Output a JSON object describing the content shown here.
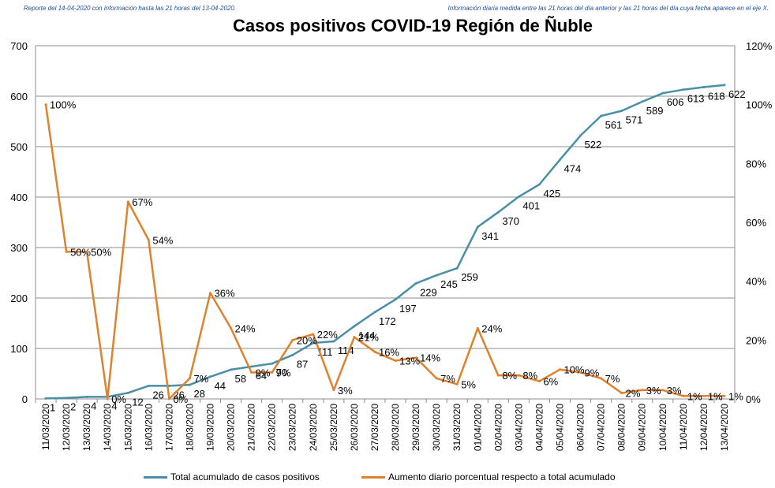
{
  "notes": {
    "left": "Reporte del 14-04-2020  con información hasta las 21 horas del 13-04-2020.",
    "right": "Información diaria medida entre las 21 horas del día anterior y las 21 horas del día cuya fecha aparece en el eje X."
  },
  "chart_data": {
    "type": "line",
    "title": "Casos positivos COVID-19 Región de Ñuble",
    "categories": [
      "11/03/2020",
      "12/03/2020",
      "13/03/2020",
      "14/03/2020",
      "15/03/2020",
      "16/03/2020",
      "17/03/2020",
      "18/03/2020",
      "19/03/2020",
      "20/03/2020",
      "21/03/2020",
      "22/03/2020",
      "23/03/2020",
      "24/03/2020",
      "25/03/2020",
      "26/03/2020",
      "27/03/2020",
      "28/03/2020",
      "29/03/2020",
      "30/03/2020",
      "31/03/2020",
      "01/04/2020",
      "02/04/2020",
      "03/04/2020",
      "04/04/2020",
      "05/04/2020",
      "06/04/2020",
      "07/04/2020",
      "08/04/2020",
      "09/04/2020",
      "10/04/2020",
      "11/04/2020",
      "12/04/2020",
      "13/04/2020"
    ],
    "y_left": {
      "min": 0,
      "max": 700,
      "step": 100,
      "ticks": [
        "0",
        "100",
        "200",
        "300",
        "400",
        "500",
        "600",
        "700"
      ]
    },
    "y_right": {
      "min": 0,
      "max": 120,
      "step": 20,
      "ticks": [
        "0%",
        "20%",
        "40%",
        "60%",
        "80%",
        "100%",
        "120%"
      ]
    },
    "grid": true,
    "legend_position": "bottom",
    "series": [
      {
        "name": "Total acumulado de casos positivos",
        "axis": "left",
        "color": "#4a8fa6",
        "values": [
          1,
          2,
          4,
          4,
          12,
          26,
          26,
          28,
          44,
          58,
          64,
          70,
          87,
          111,
          114,
          144,
          172,
          197,
          229,
          245,
          259,
          341,
          370,
          401,
          425,
          474,
          522,
          561,
          571,
          589,
          606,
          613,
          618,
          622
        ],
        "labels": [
          "1",
          "2",
          "4",
          "4",
          "12",
          "26",
          "26",
          "28",
          "44",
          "58",
          "64",
          "70",
          "87",
          "111",
          "114",
          "144",
          "172",
          "197",
          "229",
          "245",
          "259",
          "341",
          "370",
          "401",
          "425",
          "474",
          "522",
          "561",
          "571",
          "589",
          "606",
          "613",
          "618",
          "622"
        ]
      },
      {
        "name": "Aumento diario porcentual respecto a total acumulado",
        "axis": "right",
        "color": "#e0812c",
        "values": [
          100,
          50,
          50,
          0,
          67,
          54,
          0,
          7,
          36,
          24,
          9,
          9,
          20,
          22,
          3,
          21,
          16,
          13,
          14,
          7,
          5,
          24,
          8,
          8,
          6,
          10,
          9,
          7,
          2,
          3,
          3,
          1,
          1,
          1
        ],
        "labels": [
          "100%",
          "50%",
          "50%",
          "0%",
          "67%",
          "54%",
          "0%",
          "7%",
          "36%",
          "24%",
          "9%",
          "9%",
          "20%",
          "22%",
          "3%",
          "21%",
          "16%",
          "13%",
          "14%",
          "7%",
          "5%",
          "24%",
          "8%",
          "8%",
          "6%",
          "10%",
          "9%",
          "7%",
          "2%",
          "3%",
          "3%",
          "1%",
          "1%",
          "1%"
        ]
      }
    ]
  }
}
